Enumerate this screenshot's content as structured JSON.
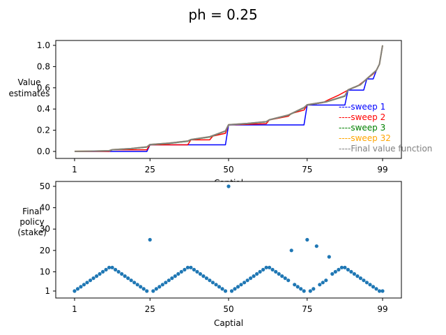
{
  "figure": {
    "title": "ph = 0.25"
  },
  "chart_data": [
    {
      "type": "line",
      "ylabel": "Value\nestimates",
      "xlabel": "Captial",
      "x_ticks": [
        "1",
        "25",
        "50",
        "75",
        "99"
      ],
      "x_tick_values": [
        1,
        25,
        50,
        75,
        99
      ],
      "y_ticks": [
        "0.0",
        "0.2",
        "0.4",
        "0.6",
        "0.8",
        "1.0"
      ],
      "y_tick_values": [
        0,
        0.2,
        0.4,
        0.6,
        0.8,
        1.0
      ],
      "xlim": [
        0,
        100
      ],
      "ylim": [
        0,
        1
      ],
      "legend_position": "lower-right",
      "series": [
        {
          "name": "sweep 1",
          "color": "#0000ff",
          "points": [
            [
              1,
              0
            ],
            [
              24,
              0
            ],
            [
              25,
              0.0625
            ],
            [
              49,
              0.0625
            ],
            [
              50,
              0.25
            ],
            [
              74,
              0.25
            ],
            [
              75,
              0.4375
            ],
            [
              87,
              0.4375
            ],
            [
              88,
              0.5781
            ],
            [
              93,
              0.5781
            ],
            [
              94,
              0.6836
            ],
            [
              96,
              0.6836
            ],
            [
              97,
              0.7627
            ],
            [
              98,
              0.822
            ],
            [
              99,
              1.0
            ]
          ]
        },
        {
          "name": "sweep 2",
          "color": "#ff0000",
          "points": [
            [
              1,
              0
            ],
            [
              12,
              0
            ],
            [
              13,
              0.0156
            ],
            [
              24,
              0.0156
            ],
            [
              25,
              0.0625
            ],
            [
              37,
              0.0625
            ],
            [
              38,
              0.1094
            ],
            [
              44,
              0.1094
            ],
            [
              45,
              0.1445
            ],
            [
              49,
              0.1709
            ],
            [
              50,
              0.25
            ],
            [
              62,
              0.2617
            ],
            [
              63,
              0.2969
            ],
            [
              69,
              0.332
            ],
            [
              70,
              0.3574
            ],
            [
              74,
              0.39
            ],
            [
              75,
              0.4375
            ],
            [
              80,
              0.46
            ],
            [
              82,
              0.49
            ],
            [
              85,
              0.53
            ],
            [
              88,
              0.5781
            ],
            [
              91,
              0.615
            ],
            [
              94,
              0.6836
            ],
            [
              96,
              0.73
            ],
            [
              97,
              0.7627
            ],
            [
              98,
              0.822
            ],
            [
              99,
              1.0
            ]
          ]
        },
        {
          "name": "sweep 3",
          "color": "#008000",
          "points": [
            [
              1,
              0.0005
            ],
            [
              6,
              0.002
            ],
            [
              12,
              0.006
            ],
            [
              13,
              0.0156
            ],
            [
              19,
              0.025
            ],
            [
              24,
              0.04
            ],
            [
              25,
              0.0625
            ],
            [
              31,
              0.075
            ],
            [
              37,
              0.095
            ],
            [
              38,
              0.1094
            ],
            [
              44,
              0.135
            ],
            [
              49,
              0.19
            ],
            [
              50,
              0.25
            ],
            [
              56,
              0.262
            ],
            [
              62,
              0.278
            ],
            [
              63,
              0.2969
            ],
            [
              69,
              0.34
            ],
            [
              74,
              0.41
            ],
            [
              75,
              0.4375
            ],
            [
              81,
              0.465
            ],
            [
              87,
              0.52
            ],
            [
              88,
              0.5781
            ],
            [
              92,
              0.628
            ],
            [
              94,
              0.6836
            ],
            [
              97,
              0.7627
            ],
            [
              98,
              0.822
            ],
            [
              99,
              1.0
            ]
          ]
        },
        {
          "name": "sweep 32",
          "color": "#ffa500",
          "points": [
            [
              1,
              0.0006
            ],
            [
              6,
              0.0025
            ],
            [
              12,
              0.0065
            ],
            [
              13,
              0.0165
            ],
            [
              19,
              0.027
            ],
            [
              24,
              0.043
            ],
            [
              25,
              0.065
            ],
            [
              31,
              0.078
            ],
            [
              37,
              0.098
            ],
            [
              38,
              0.112
            ],
            [
              44,
              0.138
            ],
            [
              49,
              0.193
            ],
            [
              50,
              0.252
            ],
            [
              56,
              0.264
            ],
            [
              62,
              0.28
            ],
            [
              63,
              0.299
            ],
            [
              69,
              0.343
            ],
            [
              74,
              0.413
            ],
            [
              75,
              0.44
            ],
            [
              81,
              0.468
            ],
            [
              87,
              0.523
            ],
            [
              88,
              0.58
            ],
            [
              92,
              0.63
            ],
            [
              94,
              0.685
            ],
            [
              97,
              0.764
            ],
            [
              98,
              0.823
            ],
            [
              99,
              1.0
            ]
          ]
        },
        {
          "name": "Final value function",
          "color": "#808080",
          "points": [
            [
              1,
              0.0006
            ],
            [
              6,
              0.0025
            ],
            [
              12,
              0.0065
            ],
            [
              13,
              0.0165
            ],
            [
              19,
              0.027
            ],
            [
              24,
              0.043
            ],
            [
              25,
              0.065
            ],
            [
              31,
              0.078
            ],
            [
              37,
              0.098
            ],
            [
              38,
              0.112
            ],
            [
              44,
              0.138
            ],
            [
              49,
              0.193
            ],
            [
              50,
              0.252
            ],
            [
              56,
              0.264
            ],
            [
              62,
              0.28
            ],
            [
              63,
              0.299
            ],
            [
              69,
              0.343
            ],
            [
              74,
              0.413
            ],
            [
              75,
              0.44
            ],
            [
              81,
              0.468
            ],
            [
              87,
              0.523
            ],
            [
              88,
              0.58
            ],
            [
              92,
              0.63
            ],
            [
              94,
              0.685
            ],
            [
              97,
              0.764
            ],
            [
              98,
              0.823
            ],
            [
              99,
              1.0
            ]
          ]
        }
      ]
    },
    {
      "type": "scatter",
      "ylabel": "Final\npolicy\n(stake)",
      "xlabel": "Captial",
      "x_ticks": [
        "1",
        "25",
        "50",
        "75",
        "99"
      ],
      "x_tick_values": [
        1,
        25,
        50,
        75,
        99
      ],
      "y_ticks": [
        "1",
        "10",
        "20",
        "30",
        "40",
        "50"
      ],
      "y_tick_values": [
        1,
        10,
        20,
        30,
        40,
        50
      ],
      "xlim": [
        -4.9,
        105.9
      ],
      "ylim": [
        -2.5,
        52.6
      ],
      "color": "#1f77b4",
      "x": [
        1,
        2,
        3,
        4,
        5,
        6,
        7,
        8,
        9,
        10,
        11,
        12,
        13,
        14,
        15,
        16,
        17,
        18,
        19,
        20,
        21,
        22,
        23,
        24,
        25,
        26,
        27,
        28,
        29,
        30,
        31,
        32,
        33,
        34,
        35,
        36,
        37,
        38,
        39,
        40,
        41,
        42,
        43,
        44,
        45,
        46,
        47,
        48,
        49,
        50,
        51,
        52,
        53,
        54,
        55,
        56,
        57,
        58,
        59,
        60,
        61,
        62,
        63,
        64,
        65,
        66,
        67,
        68,
        69,
        70,
        71,
        72,
        73,
        74,
        75,
        76,
        77,
        78,
        79,
        80,
        81,
        82,
        83,
        84,
        85,
        86,
        87,
        88,
        89,
        90,
        91,
        92,
        93,
        94,
        95,
        96,
        97,
        98,
        99
      ],
      "y": [
        1,
        2,
        3,
        4,
        5,
        6,
        7,
        8,
        9,
        10,
        11,
        12,
        12,
        11,
        10,
        9,
        8,
        7,
        6,
        5,
        4,
        3,
        2,
        1,
        25,
        1,
        2,
        3,
        4,
        5,
        6,
        7,
        8,
        9,
        10,
        11,
        12,
        12,
        11,
        10,
        9,
        8,
        7,
        6,
        5,
        4,
        3,
        2,
        1,
        50,
        1,
        2,
        3,
        4,
        5,
        6,
        7,
        8,
        9,
        10,
        11,
        12,
        12,
        11,
        10,
        9,
        8,
        7,
        6,
        20,
        4,
        3,
        2,
        1,
        25,
        1,
        2,
        22,
        4,
        5,
        6,
        17,
        9,
        10,
        11,
        12,
        12,
        11,
        10,
        9,
        8,
        7,
        6,
        5,
        4,
        3,
        2,
        1,
        1
      ]
    }
  ]
}
